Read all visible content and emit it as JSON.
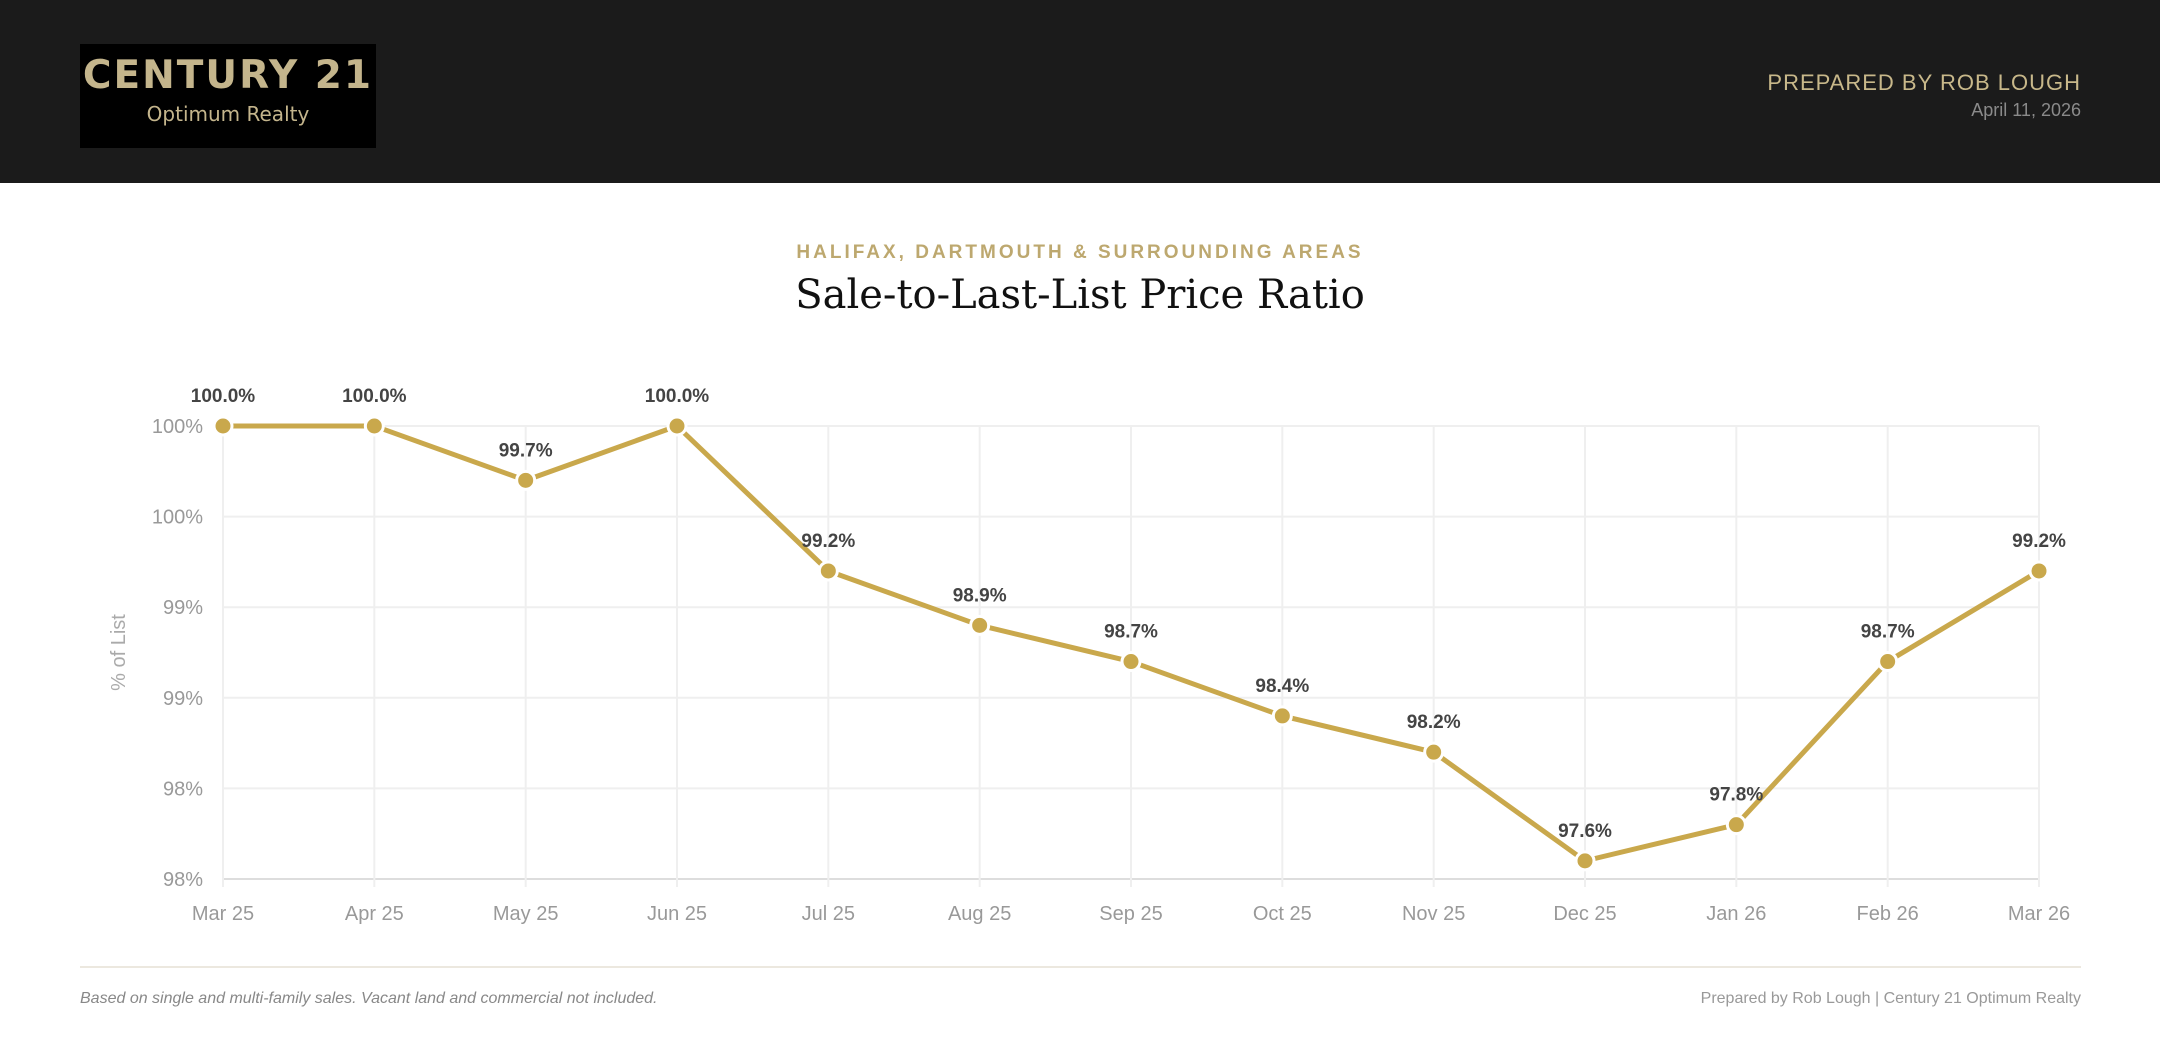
{
  "header": {
    "logo_line1": "CENTURY 21",
    "logo_line2": "Optimum Realty",
    "prepared_by": "PREPARED BY ROB LOUGH",
    "date": "April 11, 2026"
  },
  "colors": {
    "accent": "#c9a84c",
    "header_bg": "#1b1b1b",
    "gold_text": "#c4b58c"
  },
  "chart_data": {
    "type": "line",
    "subtitle": "HALIFAX, DARTMOUTH & SURROUNDING AREAS",
    "title": "Sale-to-Last-List Price Ratio",
    "xlabel": "",
    "ylabel": "% of List",
    "ylim": [
      97.5,
      100
    ],
    "y_ticks": [
      100,
      99.5,
      99,
      98.5,
      98,
      97.5
    ],
    "y_tick_labels": [
      "100%",
      "100%",
      "99%",
      "99%",
      "98%",
      "98%"
    ],
    "grid": true,
    "categories": [
      "Mar 25",
      "Apr 25",
      "May 25",
      "Jun 25",
      "Jul 25",
      "Aug 25",
      "Sep 25",
      "Oct 25",
      "Nov 25",
      "Dec 25",
      "Jan 26",
      "Feb 26",
      "Mar 26"
    ],
    "values": [
      100.0,
      100.0,
      99.7,
      100.0,
      99.2,
      98.9,
      98.7,
      98.4,
      98.2,
      97.6,
      97.8,
      98.7,
      99.2
    ],
    "data_labels": [
      "100.0%",
      "100.0%",
      "99.7%",
      "100.0%",
      "99.2%",
      "98.9%",
      "98.7%",
      "98.4%",
      "98.2%",
      "97.6%",
      "97.8%",
      "98.7%",
      "99.2%"
    ]
  },
  "footer": {
    "note": "Based on single and multi-family sales. Vacant land and commercial not included.",
    "credit": "Prepared by Rob Lough | Century 21 Optimum Realty"
  }
}
